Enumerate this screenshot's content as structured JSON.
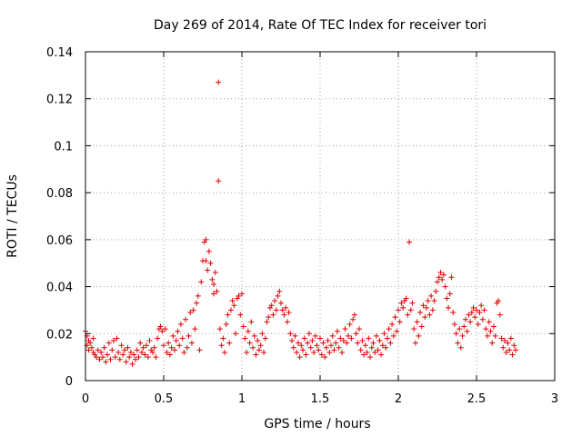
{
  "chart_data": {
    "type": "scatter",
    "title": "Day 269 of 2014, Rate Of TEC Index for receiver tori",
    "xlabel": "GPS time / hours",
    "ylabel": "ROTI / TECUs",
    "xlim": [
      0,
      3
    ],
    "ylim": [
      0,
      0.14
    ],
    "x_ticks": [
      0,
      0.5,
      1,
      1.5,
      2,
      2.5,
      3
    ],
    "x_tick_labels": [
      "0",
      "0.5",
      "1",
      "1.5",
      "2",
      "2.5",
      "3"
    ],
    "y_ticks": [
      0,
      0.02,
      0.04,
      0.06,
      0.08,
      0.1,
      0.12,
      0.14
    ],
    "y_tick_labels": [
      "0",
      "0.02",
      "0.04",
      "0.06",
      "0.08",
      "0.1",
      "0.12",
      "0.14"
    ],
    "grid": true,
    "marker": "plus",
    "color": "#e00000",
    "series": [
      {
        "name": "ROTI",
        "points": [
          [
            0.0,
            0.021
          ],
          [
            0.01,
            0.019
          ],
          [
            0.01,
            0.015
          ],
          [
            0.02,
            0.017
          ],
          [
            0.02,
            0.013
          ],
          [
            0.03,
            0.016
          ],
          [
            0.04,
            0.014
          ],
          [
            0.05,
            0.012
          ],
          [
            0.05,
            0.018
          ],
          [
            0.06,
            0.011
          ],
          [
            0.07,
            0.01
          ],
          [
            0.08,
            0.013
          ],
          [
            0.09,
            0.009
          ],
          [
            0.1,
            0.012
          ],
          [
            0.11,
            0.01
          ],
          [
            0.12,
            0.014
          ],
          [
            0.13,
            0.008
          ],
          [
            0.14,
            0.011
          ],
          [
            0.15,
            0.016
          ],
          [
            0.16,
            0.009
          ],
          [
            0.17,
            0.013
          ],
          [
            0.18,
            0.017
          ],
          [
            0.19,
            0.01
          ],
          [
            0.2,
            0.018
          ],
          [
            0.21,
            0.012
          ],
          [
            0.22,
            0.009
          ],
          [
            0.23,
            0.015
          ],
          [
            0.24,
            0.011
          ],
          [
            0.25,
            0.013
          ],
          [
            0.26,
            0.008
          ],
          [
            0.27,
            0.014
          ],
          [
            0.28,
            0.01
          ],
          [
            0.29,
            0.012
          ],
          [
            0.3,
            0.007
          ],
          [
            0.31,
            0.011
          ],
          [
            0.32,
            0.009
          ],
          [
            0.33,
            0.013
          ],
          [
            0.34,
            0.01
          ],
          [
            0.35,
            0.016
          ],
          [
            0.36,
            0.012
          ],
          [
            0.37,
            0.014
          ],
          [
            0.38,
            0.011
          ],
          [
            0.39,
            0.015
          ],
          [
            0.4,
            0.01
          ],
          [
            0.41,
            0.017
          ],
          [
            0.42,
            0.013
          ],
          [
            0.43,
            0.012
          ],
          [
            0.44,
            0.014
          ],
          [
            0.45,
            0.01
          ],
          [
            0.46,
            0.018
          ],
          [
            0.47,
            0.022
          ],
          [
            0.48,
            0.023
          ],
          [
            0.49,
            0.021
          ],
          [
            0.5,
            0.015
          ],
          [
            0.51,
            0.022
          ],
          [
            0.52,
            0.012
          ],
          [
            0.53,
            0.016
          ],
          [
            0.54,
            0.011
          ],
          [
            0.55,
            0.014
          ],
          [
            0.56,
            0.019
          ],
          [
            0.57,
            0.013
          ],
          [
            0.58,
            0.017
          ],
          [
            0.59,
            0.021
          ],
          [
            0.6,
            0.015
          ],
          [
            0.61,
            0.024
          ],
          [
            0.62,
            0.018
          ],
          [
            0.63,
            0.012
          ],
          [
            0.64,
            0.026
          ],
          [
            0.65,
            0.014
          ],
          [
            0.66,
            0.019
          ],
          [
            0.67,
            0.029
          ],
          [
            0.68,
            0.016
          ],
          [
            0.69,
            0.03
          ],
          [
            0.7,
            0.022
          ],
          [
            0.71,
            0.033
          ],
          [
            0.72,
            0.036
          ],
          [
            0.73,
            0.013
          ],
          [
            0.74,
            0.042
          ],
          [
            0.75,
            0.051
          ],
          [
            0.76,
            0.059
          ],
          [
            0.77,
            0.06
          ],
          [
            0.77,
            0.051
          ],
          [
            0.78,
            0.047
          ],
          [
            0.79,
            0.055
          ],
          [
            0.8,
            0.05
          ],
          [
            0.81,
            0.043
          ],
          [
            0.82,
            0.041
          ],
          [
            0.82,
            0.037
          ],
          [
            0.83,
            0.046
          ],
          [
            0.84,
            0.038
          ],
          [
            0.85,
            0.127
          ],
          [
            0.85,
            0.085
          ],
          [
            0.86,
            0.022
          ],
          [
            0.87,
            0.015
          ],
          [
            0.88,
            0.018
          ],
          [
            0.89,
            0.012
          ],
          [
            0.9,
            0.024
          ],
          [
            0.91,
            0.028
          ],
          [
            0.92,
            0.016
          ],
          [
            0.93,
            0.03
          ],
          [
            0.94,
            0.034
          ],
          [
            0.95,
            0.032
          ],
          [
            0.96,
            0.02
          ],
          [
            0.97,
            0.035
          ],
          [
            0.98,
            0.036
          ],
          [
            0.99,
            0.028
          ],
          [
            1.0,
            0.037
          ],
          [
            1.01,
            0.023
          ],
          [
            1.02,
            0.018
          ],
          [
            1.03,
            0.012
          ],
          [
            1.04,
            0.021
          ],
          [
            1.05,
            0.016
          ],
          [
            1.06,
            0.025
          ],
          [
            1.07,
            0.014
          ],
          [
            1.08,
            0.019
          ],
          [
            1.09,
            0.011
          ],
          [
            1.1,
            0.017
          ],
          [
            1.11,
            0.013
          ],
          [
            1.12,
            0.015
          ],
          [
            1.13,
            0.02
          ],
          [
            1.14,
            0.012
          ],
          [
            1.15,
            0.018
          ],
          [
            1.16,
            0.025
          ],
          [
            1.17,
            0.027
          ],
          [
            1.18,
            0.031
          ],
          [
            1.19,
            0.032
          ],
          [
            1.2,
            0.028
          ],
          [
            1.21,
            0.034
          ],
          [
            1.22,
            0.03
          ],
          [
            1.23,
            0.036
          ],
          [
            1.24,
            0.038
          ],
          [
            1.25,
            0.033
          ],
          [
            1.26,
            0.03
          ],
          [
            1.27,
            0.028
          ],
          [
            1.28,
            0.031
          ],
          [
            1.29,
            0.025
          ],
          [
            1.3,
            0.029
          ],
          [
            1.31,
            0.02
          ],
          [
            1.32,
            0.017
          ],
          [
            1.33,
            0.014
          ],
          [
            1.34,
            0.019
          ],
          [
            1.35,
            0.012
          ],
          [
            1.36,
            0.016
          ],
          [
            1.37,
            0.01
          ],
          [
            1.38,
            0.015
          ],
          [
            1.39,
            0.013
          ],
          [
            1.4,
            0.018
          ],
          [
            1.41,
            0.011
          ],
          [
            1.42,
            0.016
          ],
          [
            1.43,
            0.02
          ],
          [
            1.44,
            0.014
          ],
          [
            1.45,
            0.017
          ],
          [
            1.46,
            0.012
          ],
          [
            1.47,
            0.019
          ],
          [
            1.48,
            0.015
          ],
          [
            1.49,
            0.013
          ],
          [
            1.5,
            0.018
          ],
          [
            1.51,
            0.011
          ],
          [
            1.52,
            0.016
          ],
          [
            1.53,
            0.01
          ],
          [
            1.54,
            0.014
          ],
          [
            1.55,
            0.017
          ],
          [
            1.56,
            0.012
          ],
          [
            1.57,
            0.015
          ],
          [
            1.58,
            0.019
          ],
          [
            1.59,
            0.013
          ],
          [
            1.6,
            0.016
          ],
          [
            1.61,
            0.021
          ],
          [
            1.62,
            0.014
          ],
          [
            1.63,
            0.018
          ],
          [
            1.64,
            0.012
          ],
          [
            1.65,
            0.017
          ],
          [
            1.66,
            0.022
          ],
          [
            1.67,
            0.016
          ],
          [
            1.68,
            0.019
          ],
          [
            1.69,
            0.024
          ],
          [
            1.7,
            0.018
          ],
          [
            1.71,
            0.026
          ],
          [
            1.72,
            0.028
          ],
          [
            1.73,
            0.02
          ],
          [
            1.74,
            0.016
          ],
          [
            1.75,
            0.022
          ],
          [
            1.76,
            0.013
          ],
          [
            1.77,
            0.017
          ],
          [
            1.78,
            0.011
          ],
          [
            1.79,
            0.015
          ],
          [
            1.8,
            0.012
          ],
          [
            1.81,
            0.018
          ],
          [
            1.82,
            0.01
          ],
          [
            1.83,
            0.014
          ],
          [
            1.84,
            0.016
          ],
          [
            1.85,
            0.012
          ],
          [
            1.86,
            0.019
          ],
          [
            1.87,
            0.013
          ],
          [
            1.88,
            0.017
          ],
          [
            1.89,
            0.011
          ],
          [
            1.9,
            0.015
          ],
          [
            1.91,
            0.02
          ],
          [
            1.92,
            0.014
          ],
          [
            1.93,
            0.018
          ],
          [
            1.94,
            0.022
          ],
          [
            1.95,
            0.016
          ],
          [
            1.96,
            0.024
          ],
          [
            1.97,
            0.019
          ],
          [
            1.98,
            0.027
          ],
          [
            1.99,
            0.021
          ],
          [
            2.0,
            0.03
          ],
          [
            2.01,
            0.025
          ],
          [
            2.02,
            0.033
          ],
          [
            2.03,
            0.031
          ],
          [
            2.04,
            0.034
          ],
          [
            2.05,
            0.035
          ],
          [
            2.06,
            0.028
          ],
          [
            2.07,
            0.059
          ],
          [
            2.08,
            0.03
          ],
          [
            2.09,
            0.033
          ],
          [
            2.1,
            0.022
          ],
          [
            2.11,
            0.016
          ],
          [
            2.12,
            0.025
          ],
          [
            2.13,
            0.019
          ],
          [
            2.14,
            0.029
          ],
          [
            2.15,
            0.023
          ],
          [
            2.16,
            0.032
          ],
          [
            2.17,
            0.027
          ],
          [
            2.18,
            0.031
          ],
          [
            2.19,
            0.034
          ],
          [
            2.2,
            0.028
          ],
          [
            2.21,
            0.036
          ],
          [
            2.22,
            0.03
          ],
          [
            2.23,
            0.034
          ],
          [
            2.24,
            0.038
          ],
          [
            2.25,
            0.042
          ],
          [
            2.26,
            0.044
          ],
          [
            2.27,
            0.046
          ],
          [
            2.28,
            0.043
          ],
          [
            2.29,
            0.045
          ],
          [
            2.3,
            0.04
          ],
          [
            2.31,
            0.035
          ],
          [
            2.32,
            0.031
          ],
          [
            2.33,
            0.037
          ],
          [
            2.34,
            0.044
          ],
          [
            2.35,
            0.029
          ],
          [
            2.36,
            0.024
          ],
          [
            2.37,
            0.02
          ],
          [
            2.38,
            0.016
          ],
          [
            2.39,
            0.022
          ],
          [
            2.4,
            0.014
          ],
          [
            2.41,
            0.019
          ],
          [
            2.42,
            0.023
          ],
          [
            2.43,
            0.026
          ],
          [
            2.44,
            0.021
          ],
          [
            2.45,
            0.028
          ],
          [
            2.46,
            0.025
          ],
          [
            2.47,
            0.029
          ],
          [
            2.48,
            0.031
          ],
          [
            2.49,
            0.027
          ],
          [
            2.5,
            0.03
          ],
          [
            2.51,
            0.024
          ],
          [
            2.52,
            0.029
          ],
          [
            2.53,
            0.032
          ],
          [
            2.54,
            0.026
          ],
          [
            2.55,
            0.03
          ],
          [
            2.56,
            0.022
          ],
          [
            2.57,
            0.019
          ],
          [
            2.58,
            0.025
          ],
          [
            2.59,
            0.021
          ],
          [
            2.6,
            0.016
          ],
          [
            2.61,
            0.023
          ],
          [
            2.62,
            0.019
          ],
          [
            2.63,
            0.033
          ],
          [
            2.64,
            0.034
          ],
          [
            2.65,
            0.028
          ],
          [
            2.66,
            0.018
          ],
          [
            2.67,
            0.014
          ],
          [
            2.68,
            0.017
          ],
          [
            2.69,
            0.012
          ],
          [
            2.7,
            0.016
          ],
          [
            2.71,
            0.013
          ],
          [
            2.72,
            0.018
          ],
          [
            2.73,
            0.011
          ],
          [
            2.74,
            0.015
          ],
          [
            2.75,
            0.013
          ]
        ]
      }
    ]
  }
}
